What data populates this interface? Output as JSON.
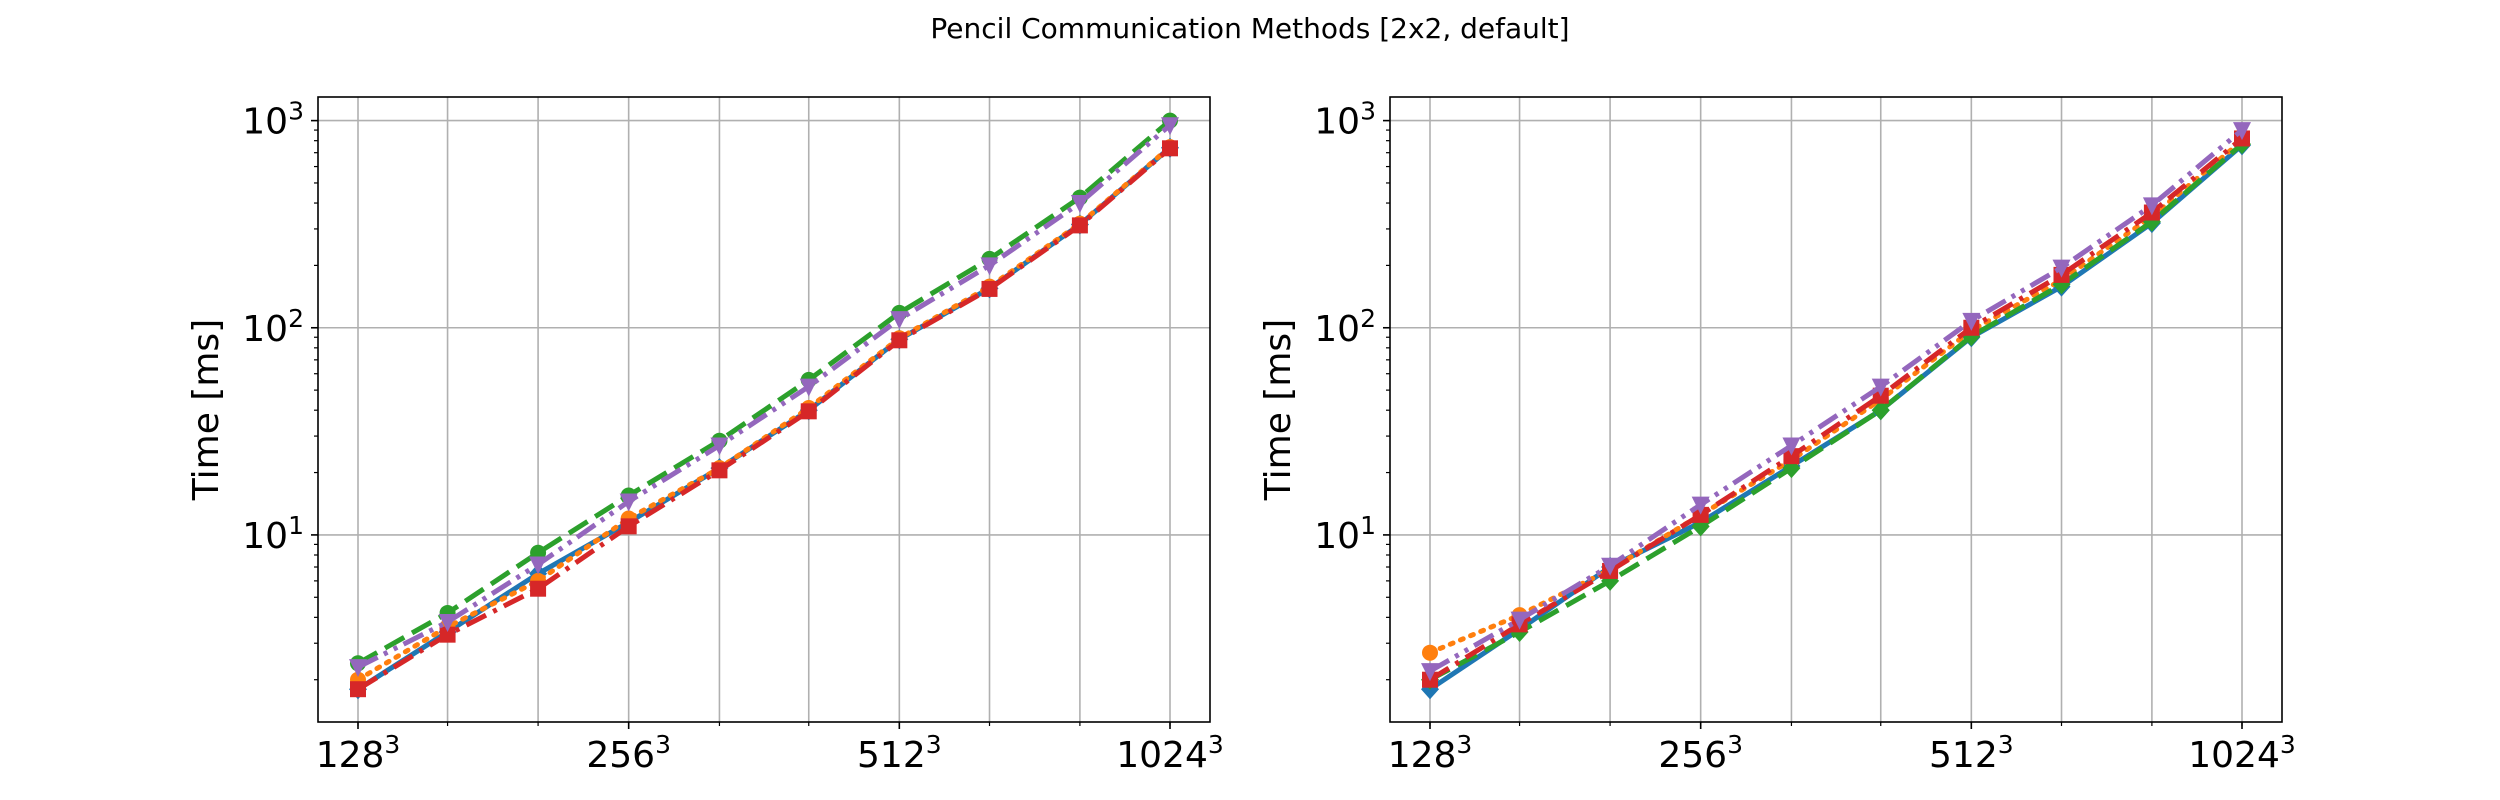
{
  "figure": {
    "title": "Pencil Communication Methods [2x2, default]"
  },
  "chart_data": [
    {
      "type": "line",
      "yscale": "log",
      "xscale": "log2",
      "ylabel": "Time [ms]",
      "xlabel": "",
      "ylim": [
        1.25,
        1300
      ],
      "grid": true,
      "x": [
        128,
        161,
        203,
        256,
        323,
        406,
        512,
        645,
        813,
        1024
      ],
      "xtick_labels": [
        {
          "base": "128",
          "exp": "3",
          "x": 128
        },
        {
          "base": "256",
          "exp": "3",
          "x": 256
        },
        {
          "base": "512",
          "exp": "3",
          "x": 512
        },
        {
          "base": "1024",
          "exp": "3",
          "x": 1024
        }
      ],
      "ytick_labels": [
        {
          "base": "10",
          "exp": "1",
          "y": 10
        },
        {
          "base": "10",
          "exp": "2",
          "y": 100
        },
        {
          "base": "10",
          "exp": "3",
          "y": 1000
        }
      ],
      "series": [
        {
          "color": "#1f77b4",
          "dash": "solid",
          "marker": "diamond",
          "values": [
            1.8,
            3.4,
            6.5,
            11.5,
            21,
            40,
            88,
            155,
            315,
            740
          ]
        },
        {
          "color": "#ff7f0e",
          "dash": "dotted",
          "marker": "circle",
          "values": [
            2.0,
            3.6,
            6.0,
            12.0,
            21,
            41,
            89,
            158,
            318,
            745
          ]
        },
        {
          "color": "#2ca02c",
          "dash": "dashed",
          "marker": "circle",
          "values": [
            2.4,
            4.2,
            8.2,
            15.5,
            28.5,
            56,
            118,
            215,
            425,
            1000
          ]
        },
        {
          "color": "#d62728",
          "dash": "dashdot",
          "marker": "square",
          "values": [
            1.8,
            3.3,
            5.5,
            11.0,
            20.5,
            39.5,
            87,
            154,
            312,
            735
          ]
        },
        {
          "color": "#9467bd",
          "dash": "dashdotdot",
          "marker": "triangle-down",
          "values": [
            2.3,
            3.8,
            7.2,
            14.5,
            27,
            52,
            110,
            200,
            400,
            950
          ]
        }
      ]
    },
    {
      "type": "line",
      "yscale": "log",
      "xscale": "log2",
      "ylabel": "Time [ms]",
      "xlabel": "",
      "ylim": [
        1.25,
        1300
      ],
      "grid": true,
      "x": [
        128,
        161,
        203,
        256,
        323,
        406,
        512,
        645,
        813,
        1024
      ],
      "xtick_labels": [
        {
          "base": "128",
          "exp": "3",
          "x": 128
        },
        {
          "base": "256",
          "exp": "3",
          "x": 256
        },
        {
          "base": "512",
          "exp": "3",
          "x": 512
        },
        {
          "base": "1024",
          "exp": "3",
          "x": 1024
        }
      ],
      "ytick_labels": [
        {
          "base": "10",
          "exp": "1",
          "y": 10
        },
        {
          "base": "10",
          "exp": "2",
          "y": 100
        },
        {
          "base": "10",
          "exp": "3",
          "y": 1000
        }
      ],
      "series": [
        {
          "color": "#1f77b4",
          "dash": "solid",
          "marker": "diamond",
          "values": [
            1.8,
            3.5,
            7.0,
            11.5,
            21.5,
            40,
            90,
            158,
            320,
            760
          ]
        },
        {
          "color": "#ff7f0e",
          "dash": "dotted",
          "marker": "circle",
          "values": [
            2.7,
            4.1,
            6.8,
            12.5,
            23,
            45,
            97,
            170,
            345,
            800
          ]
        },
        {
          "color": "#2ca02c",
          "dash": "dashed",
          "marker": "diamond",
          "values": [
            2.0,
            3.4,
            6.0,
            11.0,
            21,
            40,
            91,
            162,
            325,
            770
          ]
        },
        {
          "color": "#d62728",
          "dash": "dashdot",
          "marker": "square",
          "values": [
            2.0,
            3.7,
            6.7,
            12.5,
            24,
            47,
            100,
            180,
            360,
            820
          ]
        },
        {
          "color": "#9467bd",
          "dash": "dashdotdot",
          "marker": "triangle-down",
          "values": [
            2.2,
            3.9,
            7.1,
            14.0,
            27,
            52,
            108,
            195,
            390,
            900
          ]
        }
      ]
    }
  ]
}
